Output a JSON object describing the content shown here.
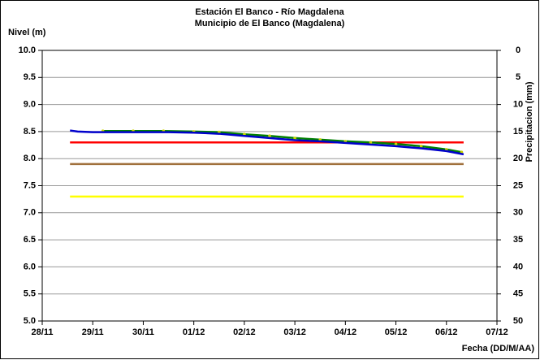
{
  "chart_data": {
    "type": "line",
    "title": "Estación El Banco - Río Magdalena",
    "subtitle": "Municipio de El Banco (Magdalena)",
    "y_label": "Nivel (m)",
    "y2_label": "Precipitacion (mm)",
    "x_label": "Fecha (DD/M/AA)",
    "xlim": [
      0,
      9
    ],
    "xticks": [
      {
        "value": 0,
        "label": "28/11"
      },
      {
        "value": 1,
        "label": "29/11"
      },
      {
        "value": 2,
        "label": "30/11"
      },
      {
        "value": 3,
        "label": "01/12"
      },
      {
        "value": 4,
        "label": "02/12"
      },
      {
        "value": 5,
        "label": "03/12"
      },
      {
        "value": 6,
        "label": "04/12"
      },
      {
        "value": 7,
        "label": "05/12"
      },
      {
        "value": 8,
        "label": "06/12"
      },
      {
        "value": 9,
        "label": "07/12"
      }
    ],
    "ylim": [
      5,
      10
    ],
    "yticks": [
      {
        "value": 5,
        "label": "5.0"
      },
      5.5,
      {
        "value": 6,
        "label": "6.0"
      },
      6.5,
      {
        "value": 7,
        "label": "7.0"
      },
      7.5,
      {
        "value": 8,
        "label": "8.0"
      },
      8.5,
      {
        "value": 9,
        "label": "9.0"
      },
      9.5,
      {
        "value": 10,
        "label": "10.0"
      }
    ],
    "y2lim": [
      50,
      0
    ],
    "y2ticks": [
      0,
      5,
      10,
      15,
      20,
      25,
      30,
      35,
      40,
      45,
      50
    ],
    "grid": true,
    "series": [
      {
        "color": "#ff0000",
        "x": [
          0.55,
          8.34
        ],
        "values": [
          8.3,
          8.3
        ]
      },
      {
        "color": "#a0703c",
        "x": [
          0.55,
          8.34
        ],
        "values": [
          7.9,
          7.9
        ]
      },
      {
        "color": "#ffff00",
        "x": [
          0.55,
          8.34
        ],
        "values": [
          7.3,
          7.3
        ]
      },
      {
        "color": "#008000",
        "markers": true,
        "x": [
          1.2,
          1.8,
          2.4,
          3.0,
          3.5,
          4.0,
          4.5,
          5.0,
          5.5,
          6.0,
          6.5,
          7.0,
          7.5,
          8.0,
          8.3
        ],
        "values": [
          8.51,
          8.51,
          8.51,
          8.5,
          8.49,
          8.45,
          8.42,
          8.38,
          8.35,
          8.32,
          8.3,
          8.27,
          8.23,
          8.17,
          8.12
        ]
      },
      {
        "color": "#0000cc",
        "x": [
          0.55,
          0.7,
          1.0,
          1.5,
          2.0,
          2.5,
          3.0,
          3.5,
          4.0,
          4.5,
          5.0,
          5.5,
          6.0,
          6.5,
          7.0,
          7.5,
          8.0,
          8.34
        ],
        "values": [
          8.52,
          8.5,
          8.49,
          8.49,
          8.49,
          8.49,
          8.48,
          8.46,
          8.42,
          8.38,
          8.34,
          8.32,
          8.29,
          8.26,
          8.23,
          8.19,
          8.14,
          8.08
        ]
      }
    ]
  }
}
